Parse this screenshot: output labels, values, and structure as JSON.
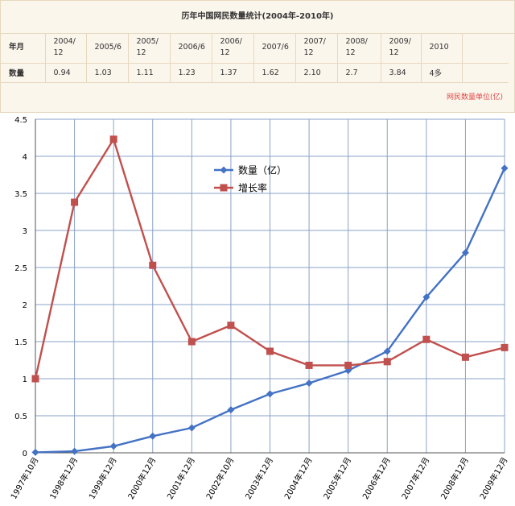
{
  "table": {
    "title": "历年中国网民数量统计(2004年-2010年)",
    "row_labels": [
      "年月",
      "数量"
    ],
    "headers": [
      "2004/12",
      "2005/6",
      "2005/12",
      "2006/6",
      "2006/12",
      "2007/6",
      "2007/12",
      "2008/12",
      "2009/12",
      "2010"
    ],
    "values": [
      "0.94",
      "1.03",
      "1.11",
      "1.23",
      "1.37",
      "1.62",
      "2.10",
      "2.7",
      "3.84",
      "4多"
    ],
    "watermark": "网民数量单位(亿)"
  },
  "chart_data": {
    "type": "line",
    "categories": [
      "1997年10月",
      "1998年12月",
      "1999年12月",
      "2000年12月",
      "2001年12月",
      "2002年10月",
      "2003年12月",
      "2004年12月",
      "2005年12月",
      "2006年12月",
      "2007年12月",
      "2008年12月",
      "2009年12月"
    ],
    "series": [
      {
        "name": "数量（亿）",
        "color": "#4472c4",
        "marker": "diamond",
        "values": [
          0.0062,
          0.021,
          0.089,
          0.225,
          0.337,
          0.58,
          0.795,
          0.94,
          1.11,
          1.37,
          2.1,
          2.7,
          3.84
        ]
      },
      {
        "name": "增长率",
        "color": "#c0504d",
        "marker": "square",
        "values": [
          1.0,
          3.38,
          4.23,
          2.53,
          1.5,
          1.72,
          1.37,
          1.18,
          1.18,
          1.23,
          1.53,
          1.29,
          1.42
        ]
      }
    ],
    "yticks": [
      "0",
      "0.5",
      "1",
      "1.5",
      "2",
      "2.5",
      "3",
      "3.5",
      "4",
      "4.5"
    ],
    "ylim": [
      0,
      4.5
    ],
    "grid": true,
    "legend_position": "upper-center"
  }
}
